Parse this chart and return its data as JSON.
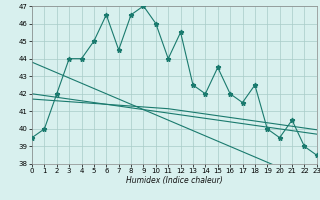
{
  "x": [
    0,
    1,
    2,
    3,
    4,
    5,
    6,
    7,
    8,
    9,
    10,
    11,
    12,
    13,
    14,
    15,
    16,
    17,
    18,
    19,
    20,
    21,
    22,
    23
  ],
  "y_main": [
    39.5,
    40.0,
    42.0,
    44.0,
    44.0,
    45.0,
    46.5,
    44.5,
    46.5,
    47.0,
    46.0,
    44.0,
    45.5,
    42.5,
    42.0,
    43.5,
    42.0,
    41.5,
    42.5,
    40.0,
    39.5,
    40.5,
    39.0,
    38.5
  ],
  "y_trend1": [
    43.8,
    43.5,
    43.2,
    42.9,
    42.6,
    42.3,
    42.0,
    41.7,
    41.4,
    41.1,
    40.8,
    40.5,
    40.2,
    39.9,
    39.6,
    39.3,
    39.0,
    38.7,
    38.4,
    38.1,
    37.8,
    37.5,
    37.2,
    36.9
  ],
  "y_trend2": [
    42.0,
    41.9,
    41.8,
    41.7,
    41.6,
    41.5,
    41.4,
    41.3,
    41.2,
    41.1,
    41.0,
    40.9,
    40.8,
    40.7,
    40.6,
    40.5,
    40.4,
    40.3,
    40.2,
    40.1,
    40.0,
    39.9,
    39.8,
    39.7
  ],
  "y_trend3": [
    41.7,
    41.65,
    41.6,
    41.55,
    41.5,
    41.45,
    41.4,
    41.35,
    41.3,
    41.25,
    41.2,
    41.15,
    41.05,
    40.95,
    40.85,
    40.75,
    40.65,
    40.55,
    40.45,
    40.35,
    40.25,
    40.15,
    40.05,
    39.95
  ],
  "line_color": "#1a7a6e",
  "bg_color": "#d8f0ee",
  "grid_color": "#a8ccc8",
  "xlabel": "Humidex (Indice chaleur)",
  "ylim": [
    38,
    47
  ],
  "xlim": [
    0,
    23
  ],
  "yticks": [
    38,
    39,
    40,
    41,
    42,
    43,
    44,
    45,
    46,
    47
  ],
  "xticks": [
    0,
    1,
    2,
    3,
    4,
    5,
    6,
    7,
    8,
    9,
    10,
    11,
    12,
    13,
    14,
    15,
    16,
    17,
    18,
    19,
    20,
    21,
    22,
    23
  ]
}
